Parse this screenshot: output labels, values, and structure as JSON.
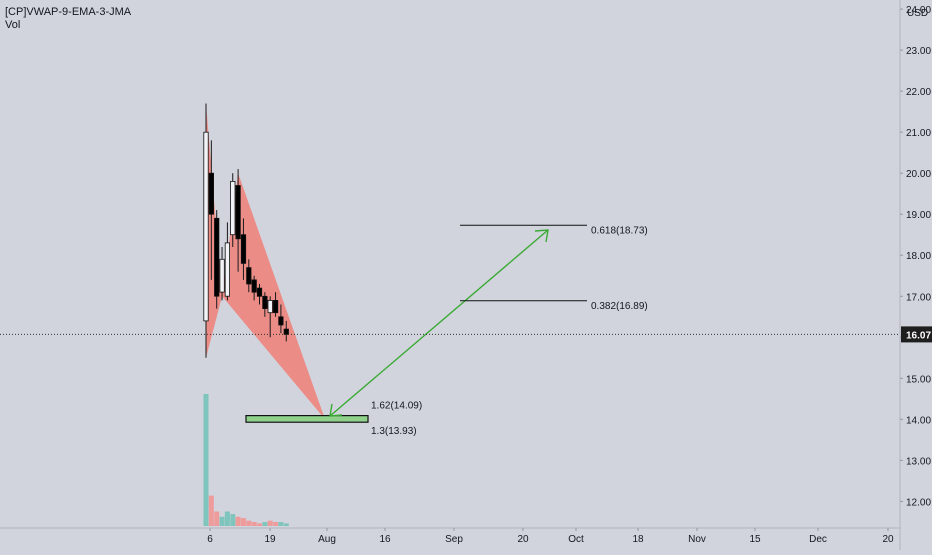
{
  "legend": {
    "symbol": "[CP]VWAP-9-EMA-3-JMA",
    "volume": "Vol"
  },
  "colors": {
    "background": "#d1d4dc",
    "candle_up": "#f2f3f7",
    "candle_down": "#000000",
    "wick": "#1a1a1a",
    "pattern_fill": "#f07f78",
    "zone_fill": "#90d18c",
    "arrow": "#3aaa35",
    "volume_up": "#7fc5bd",
    "volume_down": "#ee9b9b",
    "last_price_bg": "#1e1e1e"
  },
  "chart_data": {
    "type": "candlestick",
    "price_axis": {
      "currency": "USD",
      "ticks": [
        "12.00",
        "13.00",
        "14.00",
        "15.00",
        "16.00",
        "17.00",
        "18.00",
        "19.00",
        "20.00",
        "21.00",
        "22.00",
        "23.00",
        "24.00"
      ],
      "range": [
        11.4,
        24.1
      ],
      "last_price": "16.07",
      "last_value": 16.07
    },
    "time_axis": {
      "labels": [
        "6",
        "19",
        "Aug",
        "16",
        "Sep",
        "20",
        "Oct",
        "18",
        "Nov",
        "15",
        "Dec",
        "20"
      ],
      "day_range": [
        0,
        192
      ],
      "label_days": [
        8.7,
        21.3,
        39.6,
        55.8,
        69.5,
        83.7,
        93.5,
        106.7,
        119.7,
        133.2,
        145.0,
        158.4
      ]
    },
    "candles": [
      {
        "day": 5,
        "open": 16.4,
        "high": 21.7,
        "low": 15.5,
        "close": 21.0
      },
      {
        "day": 6,
        "open": 20.0,
        "high": 20.8,
        "low": 17.4,
        "close": 19.0
      },
      {
        "day": 7,
        "open": 18.9,
        "high": 19.1,
        "low": 16.7,
        "close": 17.0
      },
      {
        "day": 8,
        "open": 17.1,
        "high": 18.2,
        "low": 16.9,
        "close": 17.9
      },
      {
        "day": 9,
        "open": 17.0,
        "high": 18.8,
        "low": 16.9,
        "close": 18.3
      },
      {
        "day": 10,
        "open": 18.5,
        "high": 20.0,
        "low": 18.2,
        "close": 19.8
      },
      {
        "day": 11,
        "open": 19.7,
        "high": 20.1,
        "low": 17.6,
        "close": 18.4
      },
      {
        "day": 12,
        "open": 18.5,
        "high": 18.9,
        "low": 17.4,
        "close": 17.8
      },
      {
        "day": 13,
        "open": 17.7,
        "high": 17.9,
        "low": 17.1,
        "close": 17.3
      },
      {
        "day": 14,
        "open": 17.4,
        "high": 17.5,
        "low": 16.9,
        "close": 17.1
      },
      {
        "day": 15,
        "open": 17.2,
        "high": 17.3,
        "low": 16.8,
        "close": 17.0
      },
      {
        "day": 16,
        "open": 17.0,
        "high": 17.1,
        "low": 16.5,
        "close": 16.7
      },
      {
        "day": 17,
        "open": 16.6,
        "high": 17.0,
        "low": 16.0,
        "close": 16.9
      },
      {
        "day": 18,
        "open": 16.9,
        "high": 17.1,
        "low": 16.5,
        "close": 16.6
      },
      {
        "day": 19,
        "open": 16.5,
        "high": 16.8,
        "low": 16.1,
        "close": 16.3
      },
      {
        "day": 20,
        "open": 16.2,
        "high": 16.4,
        "low": 15.9,
        "close": 16.07
      }
    ],
    "volume": [
      {
        "day": 5,
        "value": 1.0,
        "up": true
      },
      {
        "day": 6,
        "value": 0.23,
        "up": false
      },
      {
        "day": 7,
        "value": 0.11,
        "up": false
      },
      {
        "day": 8,
        "value": 0.07,
        "up": true
      },
      {
        "day": 9,
        "value": 0.11,
        "up": true
      },
      {
        "day": 10,
        "value": 0.09,
        "up": true
      },
      {
        "day": 11,
        "value": 0.07,
        "up": false
      },
      {
        "day": 12,
        "value": 0.06,
        "up": false
      },
      {
        "day": 13,
        "value": 0.04,
        "up": false
      },
      {
        "day": 14,
        "value": 0.03,
        "up": false
      },
      {
        "day": 15,
        "value": 0.02,
        "up": false
      },
      {
        "day": 16,
        "value": 0.03,
        "up": true
      },
      {
        "day": 17,
        "value": 0.04,
        "up": false
      },
      {
        "day": 18,
        "value": 0.03,
        "up": false
      },
      {
        "day": 19,
        "value": 0.03,
        "up": true
      },
      {
        "day": 20,
        "value": 0.02,
        "up": true
      }
    ],
    "pattern": {
      "triangle1": [
        [
          5,
          21.7
        ],
        [
          5,
          15.5
        ],
        [
          8,
          17.0
        ]
      ],
      "triangle2": [
        [
          8,
          17.0
        ],
        [
          11,
          20.0
        ],
        [
          36,
          14.0
        ]
      ]
    },
    "zone": {
      "day_start": 12,
      "day_end": 42,
      "top": 14.09,
      "bottom": 13.93
    },
    "arrow": {
      "from": [
        36,
        14.0
      ],
      "to": [
        66,
        18.8
      ]
    },
    "levels": [
      {
        "label": "0.618(18.73)",
        "value": 18.73,
        "day_start": 49,
        "day_end": 78
      },
      {
        "label": "0.382(16.89)",
        "value": 16.89,
        "day_start": 49,
        "day_end": 78
      }
    ],
    "zone_labels": [
      {
        "label": "1.62(14.09)",
        "value": 14.09
      },
      {
        "label": "1.3(13.93)",
        "value": 13.93
      }
    ]
  }
}
